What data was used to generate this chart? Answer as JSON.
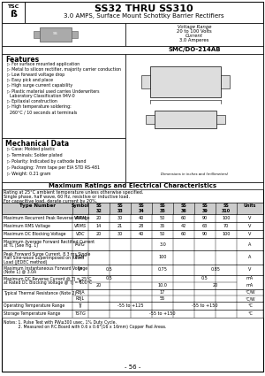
{
  "title_part": "SS32 THRU SS310",
  "title_sub": "3.0 AMPS, Surface Mount Schottky Barrier Rectifiers",
  "voltage_range_label": "Voltage Range",
  "voltage_range_val": "20 to 100 Volts",
  "current_label": "Current",
  "current_val": "3.0 Amperes",
  "package": "SMC/DO-214AB",
  "features_title": "Features",
  "features": [
    "For surface mounted application",
    "Metal to silicon rectifier, majority carrier conduction",
    "Low forward voltage drop",
    "Easy pick and place",
    "High surge current capability",
    "Plastic material used carries Underwriters",
    "Laboratory Classification 94V-0",
    "Epitaxial construction",
    "High temperature soldering:",
    "260°C / 10 seconds at terminals"
  ],
  "mech_title": "Mechanical Data",
  "mech": [
    "Case: Molded plastic",
    "Terminals: Solder plated",
    "Polarity: Indicated by cathode band",
    "Packaging: 7mm tape per EIA STD RS-481",
    "Weight: 0.21 gram"
  ],
  "max_title": "Maximum Ratings and Electrical Characteristics",
  "max_sub1": "Rating at 25°C ambient temperature unless otherwise specified.",
  "max_sub2": "Single phase, half wave, 60 Hz, resistive or inductive load.",
  "max_sub3": "For capacitive load, derate current by 20%.",
  "col_headers_top": [
    "SS",
    "SS",
    "SS",
    "SS",
    "SS",
    "SS",
    "SS"
  ],
  "col_headers_bot": [
    "32",
    "33",
    "34",
    "35",
    "36",
    "39",
    "310"
  ],
  "notes": [
    "Notes: 1. Pulse Test with PW≤300 usec, 1% Duty Cycle.",
    "           2. Measured on P.C.Board with 0.6 x 0.6\"(16 x 16mm) Copper Pad Areas."
  ],
  "page": "- 56 -",
  "bg_color": "#ffffff"
}
